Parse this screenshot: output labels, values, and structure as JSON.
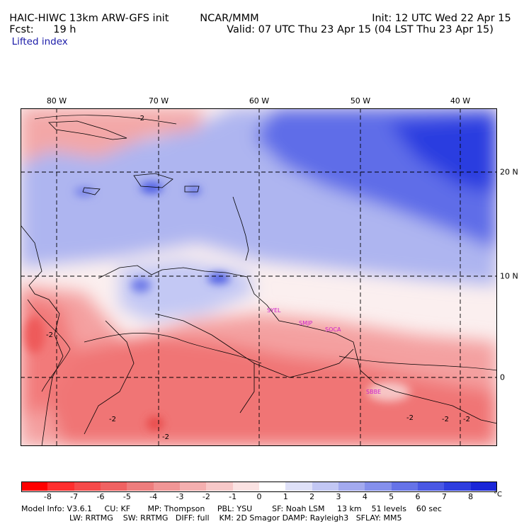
{
  "header": {
    "model": "HAIC-HIWC 13km ARW-GFS init",
    "center": "NCAR/MMM",
    "init": "Init: 12 UTC Wed 22 Apr 15",
    "fcst_label": "Fcst:",
    "fcst_value": "19 h",
    "valid": "Valid: 07 UTC Thu 23 Apr 15 (04 LST Thu 23 Apr 15)",
    "field": "Lifted index"
  },
  "map": {
    "longitude_labels": [
      "80 W",
      "70 W",
      "60 W",
      "50 W",
      "40 W"
    ],
    "latitude_labels": [
      "20 N",
      "10 N",
      "0"
    ],
    "contour_labels": [
      "-2",
      "-2",
      "-2",
      "-2",
      "-2",
      "-2",
      "-2"
    ],
    "stations": [
      "SYEL",
      "SMJP",
      "SOCA",
      "SBBE"
    ],
    "colors": {
      "deep_red": "#ff1a1a",
      "mid_red": "#f26a6a",
      "light_red": "#f7b4b4",
      "neutral": "#fbefef",
      "light_blue": "#c8cdf5",
      "mid_blue": "#7f8cf0",
      "deep_blue": "#2a3ce0",
      "station": "#cc22cc",
      "grid": "#000000"
    }
  },
  "colorbar": {
    "labels": [
      "-8",
      "-7",
      "-6",
      "-5",
      "-4",
      "-3",
      "-2",
      "-1",
      "0",
      "1",
      "2",
      "3",
      "4",
      "5",
      "6",
      "7",
      "8"
    ],
    "unit": "°C",
    "colors": [
      "#ff0000",
      "#ff2e2e",
      "#f64a4a",
      "#f06262",
      "#ee7d7d",
      "#f19696",
      "#f4afaf",
      "#f7c8c8",
      "#fbe2e2",
      "#ffffff",
      "#dfe1f8",
      "#c2c7f4",
      "#a3aaef",
      "#8590ec",
      "#6673e8",
      "#4a58e4",
      "#2e3edf",
      "#1a26d8"
    ]
  },
  "footer": {
    "line1": "Model Info: V3.6.1     CU: KF       MP: Thompson     PBL: YSU        SF: Noah LSM     13 km    51 levels    60 sec",
    "line2": "LW: RRTMG    SW: RRTMG   DIFF: full    KM: 2D Smagor DAMP: Rayleigh3   SFLAY: MM5"
  }
}
